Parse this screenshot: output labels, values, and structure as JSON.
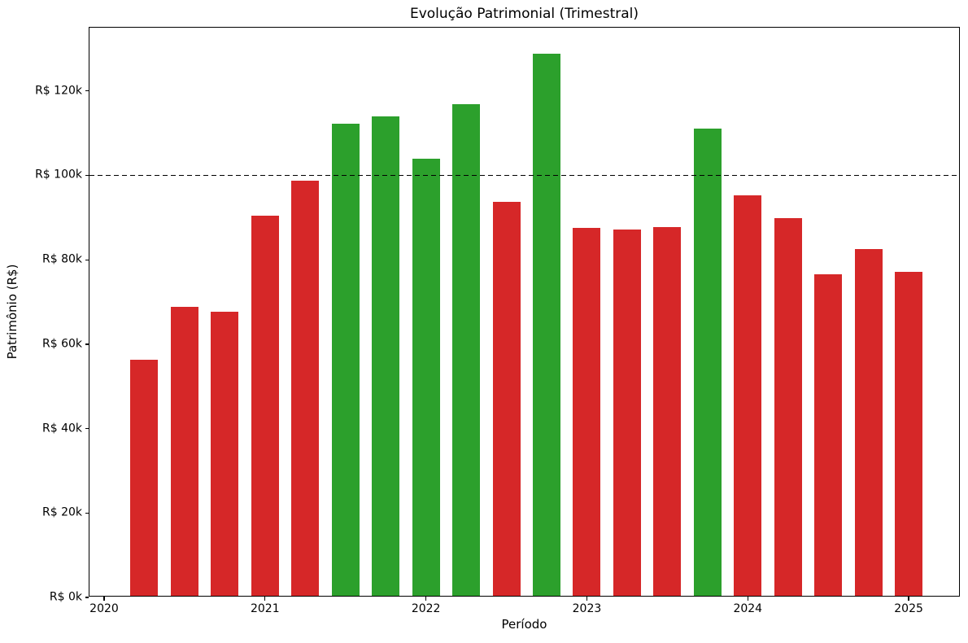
{
  "chart_data": {
    "type": "bar",
    "title": "Evolução Patrimonial (Trimestral)",
    "xlabel": "Período",
    "ylabel": "Patrimônio (R$)",
    "legend": "none",
    "grid": false,
    "axes": {
      "xlim": [
        2019.909,
        2025.323
      ],
      "ylim": [
        0,
        135000
      ],
      "x_ticks": [
        {
          "value": 2020,
          "label": "2020"
        },
        {
          "value": 2021,
          "label": "2021"
        },
        {
          "value": 2022,
          "label": "2022"
        },
        {
          "value": 2023,
          "label": "2023"
        },
        {
          "value": 2024,
          "label": "2024"
        },
        {
          "value": 2025,
          "label": "2025"
        }
      ],
      "y_ticks": [
        {
          "value": 0,
          "label": "R$ 0k"
        },
        {
          "value": 20000,
          "label": "R$ 20k"
        },
        {
          "value": 40000,
          "label": "R$ 40k"
        },
        {
          "value": 60000,
          "label": "R$ 60k"
        },
        {
          "value": 80000,
          "label": "R$ 80k"
        },
        {
          "value": 100000,
          "label": "R$ 100k"
        },
        {
          "value": 120000,
          "label": "R$ 120k"
        }
      ]
    },
    "threshold_line": {
      "value": 100000,
      "style": "dashed",
      "color": "#000000"
    },
    "colors": {
      "above": "#2ca02c",
      "below": "#d62728"
    },
    "bars": [
      {
        "period": "2020-Q2",
        "value": 56000,
        "trend": "below"
      },
      {
        "period": "2020-Q3",
        "value": 68400,
        "trend": "below"
      },
      {
        "period": "2020-Q4",
        "value": 67300,
        "trend": "below"
      },
      {
        "period": "2021-Q1",
        "value": 90000,
        "trend": "below"
      },
      {
        "period": "2021-Q2",
        "value": 98400,
        "trend": "below"
      },
      {
        "period": "2021-Q3",
        "value": 111800,
        "trend": "above"
      },
      {
        "period": "2021-Q4",
        "value": 113500,
        "trend": "above"
      },
      {
        "period": "2022-Q1",
        "value": 103500,
        "trend": "above"
      },
      {
        "period": "2022-Q2",
        "value": 116500,
        "trend": "above"
      },
      {
        "period": "2022-Q3",
        "value": 93300,
        "trend": "below"
      },
      {
        "period": "2022-Q4",
        "value": 128400,
        "trend": "above"
      },
      {
        "period": "2023-Q1",
        "value": 87200,
        "trend": "below"
      },
      {
        "period": "2023-Q2",
        "value": 86700,
        "trend": "below"
      },
      {
        "period": "2023-Q3",
        "value": 87300,
        "trend": "below"
      },
      {
        "period": "2023-Q4",
        "value": 110700,
        "trend": "above"
      },
      {
        "period": "2024-Q1",
        "value": 94900,
        "trend": "below"
      },
      {
        "period": "2024-Q2",
        "value": 89500,
        "trend": "below"
      },
      {
        "period": "2024-Q3",
        "value": 76200,
        "trend": "below"
      },
      {
        "period": "2024-Q4",
        "value": 82200,
        "trend": "below"
      },
      {
        "period": "2025-Q1",
        "value": 76700,
        "trend": "below"
      }
    ]
  }
}
